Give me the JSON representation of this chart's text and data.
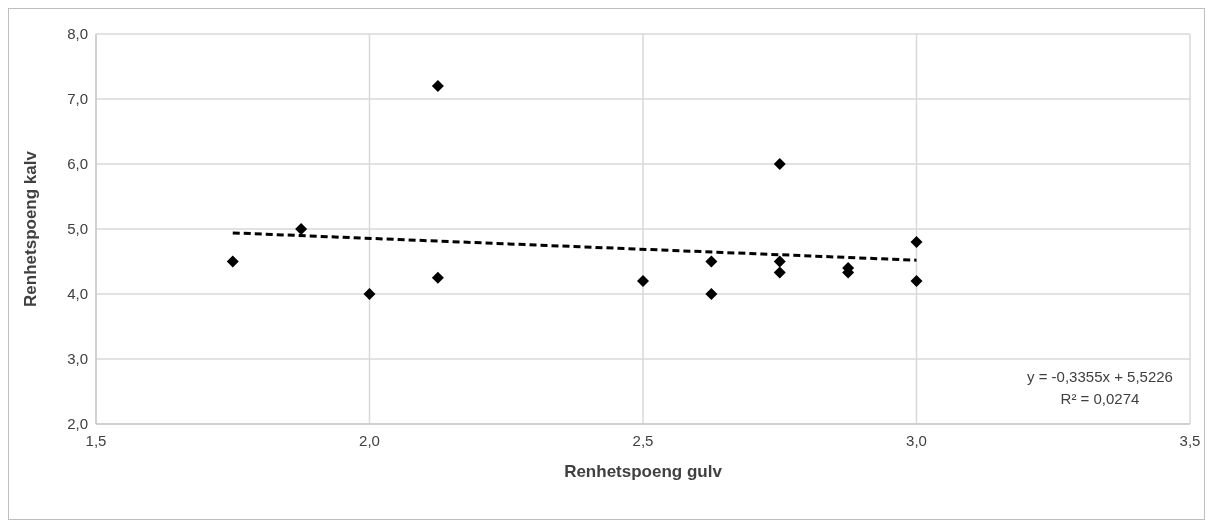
{
  "chart_data": {
    "type": "scatter",
    "xlabel": "Renhetspoeng gulv",
    "ylabel": "Renhetspoeng kalv",
    "xlim": [
      1.5,
      3.5
    ],
    "xticks": [
      {
        "value": 1.5,
        "label": "1,5"
      },
      {
        "value": 2,
        "label": "2,0"
      },
      {
        "value": 2.5,
        "label": "2,5"
      },
      {
        "value": 3,
        "label": "3,0"
      },
      {
        "value": 3.5,
        "label": "3,5"
      }
    ],
    "ylim": [
      2,
      8
    ],
    "yticks": [
      {
        "value": 2,
        "label": "2,0"
      },
      {
        "value": 3,
        "label": "3,0"
      },
      {
        "value": 4,
        "label": "4,0"
      },
      {
        "value": 5,
        "label": "5,0"
      },
      {
        "value": 6,
        "label": "6,0"
      },
      {
        "value": 7,
        "label": "7,0"
      },
      {
        "value": 8,
        "label": "8,0"
      }
    ],
    "grid": true,
    "marker": "diamond",
    "series": [
      {
        "color": "#000000",
        "x": [
          1.75,
          1.875,
          2.0,
          2.125,
          2.125,
          2.5,
          2.625,
          2.625,
          2.75,
          2.75,
          2.75,
          2.875,
          2.875,
          3.0,
          3.0
        ],
        "values": [
          4.5,
          5.0,
          4.0,
          7.2,
          4.25,
          4.2,
          4.5,
          4.0,
          6.0,
          4.5,
          4.33,
          4.4,
          4.33,
          4.8,
          4.2
        ]
      },
      {
        "type": "line",
        "color": "#000000",
        "line_style": "dashed",
        "marker": "none",
        "x": [
          1.75,
          3.0
        ],
        "values": [
          4.94,
          4.52
        ]
      }
    ],
    "annotations": [
      "y = -0,3355x + 5,5226",
      "R² = 0,0274"
    ]
  }
}
